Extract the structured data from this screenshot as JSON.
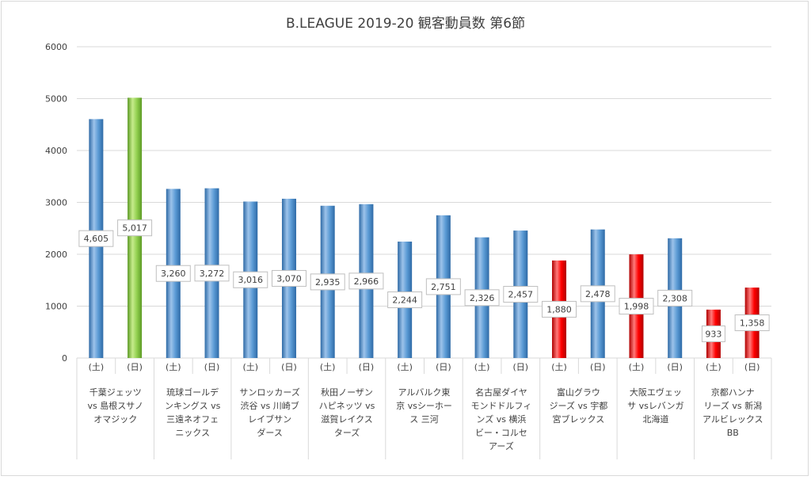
{
  "chart_data": {
    "type": "bar",
    "title": "B.LEAGUE 2019-20 観客動員数 第6節",
    "xlabel": "",
    "ylabel": "",
    "ylim": [
      0,
      6000
    ],
    "yticks": [
      "0",
      "1000",
      "2000",
      "3000",
      "4000",
      "5000",
      "6000"
    ],
    "grid": true,
    "legend": "none",
    "day_labels": [
      "(土)",
      "(日)"
    ],
    "groups": [
      {
        "label_lines": [
          "千葉ジェッツ",
          "vs 島根スサノ",
          "オマジック"
        ]
      },
      {
        "label_lines": [
          "琉球ゴールデ",
          "ンキングス vs",
          "三遠ネオフェ",
          "ニックス"
        ]
      },
      {
        "label_lines": [
          "サンロッカーズ",
          "渋谷 vs 川崎ブ",
          "レイブサン",
          "ダース"
        ]
      },
      {
        "label_lines": [
          "秋田ノーザン",
          "ハピネッツ vs",
          "滋賀レイクス",
          "ターズ"
        ]
      },
      {
        "label_lines": [
          "アルバルク東",
          "京 vsシーホー",
          "ス 三河"
        ]
      },
      {
        "label_lines": [
          "名古屋ダイヤ",
          "モンドドルフィ",
          "ンズ vs 横浜",
          "ビー・コルセ",
          "アーズ"
        ]
      },
      {
        "label_lines": [
          "富山グラウ",
          "ジーズ vs 宇都",
          "宮ブレックス"
        ]
      },
      {
        "label_lines": [
          "大阪エヴェッ",
          "サ vsレバンガ",
          "北海道"
        ]
      },
      {
        "label_lines": [
          "京都ハンナ",
          "リーズ vs 新潟",
          "アルビレックス",
          "BB"
        ]
      }
    ],
    "values": [
      4605,
      5017,
      3260,
      3272,
      3016,
      3070,
      2935,
      2966,
      2244,
      2751,
      2326,
      2457,
      1880,
      2478,
      1998,
      2308,
      933,
      1358
    ],
    "value_labels": [
      "4,605",
      "5,017",
      "3,260",
      "3,272",
      "3,016",
      "3,070",
      "2,935",
      "2,966",
      "2,244",
      "2,751",
      "2,326",
      "2,457",
      "1,880",
      "2,478",
      "1,998",
      "2,308",
      "933",
      "1,358"
    ],
    "bar_colors": [
      "blue",
      "green",
      "blue",
      "blue",
      "blue",
      "blue",
      "blue",
      "blue",
      "blue",
      "blue",
      "blue",
      "blue",
      "red",
      "blue",
      "red",
      "blue",
      "red",
      "red"
    ],
    "palette": {
      "blue": {
        "light": "#9dc3ea",
        "main": "#5b9bd5",
        "dark": "#2e6aa6"
      },
      "green": {
        "light": "#c7ec8c",
        "main": "#92d050",
        "dark": "#5c9a24"
      },
      "red": {
        "light": "#ff7a7a",
        "main": "#ff0000",
        "dark": "#b00000"
      },
      "grid": "#d9d9d9",
      "text": "#404040"
    }
  }
}
